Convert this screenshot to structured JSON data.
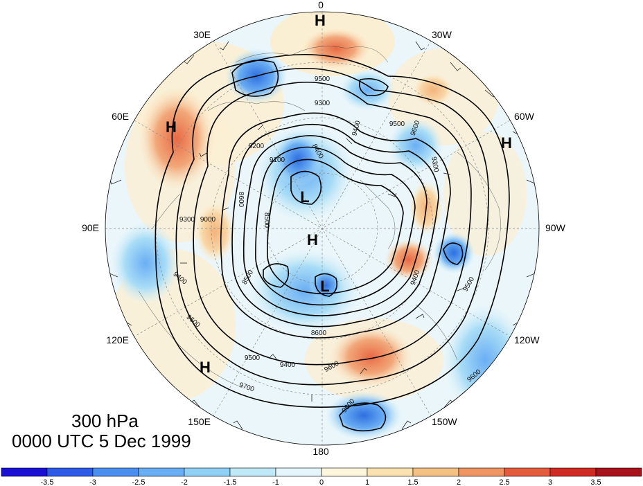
{
  "map": {
    "projection": "north-polar-stereographic",
    "field": "geopotential-height contours with shaded anomaly and wind barbs",
    "longitude_labels": [
      "0",
      "30W",
      "60W",
      "90W",
      "120W",
      "150W",
      "180",
      "150E",
      "120E",
      "90E",
      "60E",
      "30E"
    ],
    "contour_values": [
      "9500",
      "9300",
      "9500",
      "9600",
      "9400",
      "9200",
      "9100",
      "8400",
      "8500",
      "8600",
      "9000",
      "9300",
      "9400",
      "9600",
      "9700",
      "9500",
      "9400",
      "9600",
      "9800",
      "9600",
      "9300",
      "9400",
      "9500",
      "8600",
      "8500"
    ],
    "pressure_centers": [
      {
        "type": "H",
        "label": "H"
      },
      {
        "type": "H",
        "label": "H"
      },
      {
        "type": "H",
        "label": "H"
      },
      {
        "type": "H",
        "label": "H"
      },
      {
        "type": "H",
        "label": "H"
      },
      {
        "type": "L",
        "label": "L"
      },
      {
        "type": "L",
        "label": "L"
      }
    ]
  },
  "caption": {
    "level": "300 hPa",
    "time": "0000 UTC 5 Dec 1999"
  },
  "colorbar": {
    "ticks": [
      "-3.5",
      "-3",
      "-2.5",
      "-2",
      "-1.5",
      "-1",
      "0",
      "1",
      "1.5",
      "2",
      "2.5",
      "3",
      "3.5"
    ],
    "colors": [
      "#1a10d4",
      "#2d5be8",
      "#4a8ef0",
      "#6aaef4",
      "#8fd0f6",
      "#bfe9f7",
      "#e4f6fb",
      "#fdf6dc",
      "#f9e2b0",
      "#f5c083",
      "#ef9563",
      "#e45a3c",
      "#cf2b22",
      "#a8121a"
    ]
  }
}
